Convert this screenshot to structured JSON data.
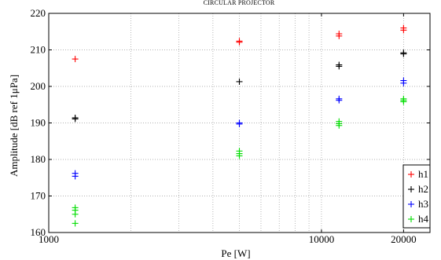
{
  "chart_data": {
    "type": "scatter",
    "title": "CIRCULAR PROJECTOR",
    "xlabel": "Pe [W]",
    "ylabel": "Amplitude [dB ref 1μPa]",
    "xscale": "log",
    "xlim": [
      1000,
      25000
    ],
    "ylim": [
      160,
      220
    ],
    "xticks": [
      1000,
      10000,
      20000
    ],
    "xtick_labels": [
      "1000",
      "10000",
      "20000"
    ],
    "yticks": [
      160,
      170,
      180,
      190,
      200,
      210,
      220
    ],
    "ytick_labels": [
      "160",
      "170",
      "180",
      "190",
      "200",
      "210",
      "220"
    ],
    "grid": true,
    "legend_position": "bottom-right",
    "marker": "+",
    "series": [
      {
        "name": "h1",
        "color": "#ff0000",
        "points": [
          [
            1250,
            207.5
          ],
          [
            5000,
            212.4
          ],
          [
            5000,
            212.1
          ],
          [
            11600,
            214.4
          ],
          [
            11600,
            213.8
          ],
          [
            20000,
            216.0
          ],
          [
            20000,
            215.4
          ]
        ]
      },
      {
        "name": "h2",
        "color": "#000000",
        "points": [
          [
            1250,
            191.4
          ],
          [
            1250,
            191.1
          ],
          [
            5000,
            201.3
          ],
          [
            11600,
            205.9
          ],
          [
            11600,
            205.5
          ],
          [
            20000,
            209.2
          ],
          [
            20000,
            208.9
          ]
        ]
      },
      {
        "name": "h3",
        "color": "#0000ff",
        "points": [
          [
            1250,
            176.2
          ],
          [
            1250,
            175.4
          ],
          [
            5000,
            190.0
          ],
          [
            5000,
            189.7
          ],
          [
            11600,
            196.6
          ],
          [
            11600,
            196.2
          ],
          [
            20000,
            201.6
          ],
          [
            20000,
            200.9
          ]
        ]
      },
      {
        "name": "h4",
        "color": "#00dd00",
        "points": [
          [
            1250,
            166.8
          ],
          [
            1250,
            166.1
          ],
          [
            1250,
            165.0
          ],
          [
            1250,
            162.5
          ],
          [
            5000,
            182.3
          ],
          [
            5000,
            181.6
          ],
          [
            5000,
            181.0
          ],
          [
            11600,
            190.4
          ],
          [
            11600,
            189.8
          ],
          [
            11600,
            189.3
          ],
          [
            20000,
            196.6
          ],
          [
            20000,
            196.2
          ],
          [
            20000,
            195.8
          ]
        ]
      }
    ]
  }
}
